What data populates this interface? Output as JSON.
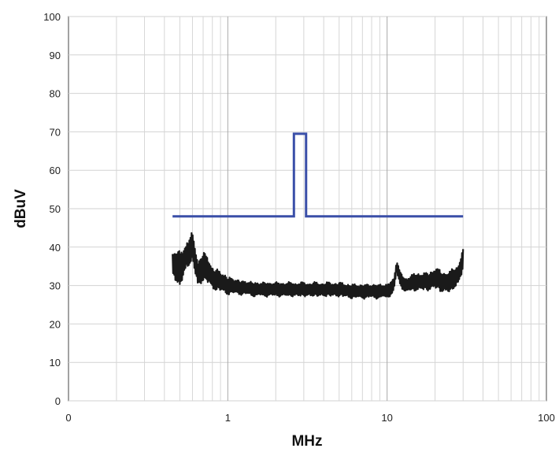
{
  "chart_data": {
    "type": "line",
    "xscale": "log",
    "xlabel": "MHz",
    "ylabel": "dBuV",
    "xlim": [
      0.1,
      100
    ],
    "ylim": [
      0,
      100
    ],
    "x_tick_labels": [
      "0",
      "1",
      "10",
      "100"
    ],
    "y_ticks": [
      0,
      10,
      20,
      30,
      40,
      50,
      60,
      70,
      80,
      90,
      100
    ],
    "grid": true,
    "legend": "none",
    "series": [
      {
        "role": "limit",
        "color": "#3a4fa8",
        "x": [
          0.45,
          2.6,
          2.6,
          3.1,
          3.1,
          30
        ],
        "y": [
          48,
          48,
          69.5,
          69.5,
          48,
          48
        ]
      },
      {
        "role": "measured",
        "color": "#1a1a1a",
        "x": [
          0.45,
          0.5,
          0.55,
          0.6,
          0.65,
          0.7,
          0.75,
          0.8,
          0.9,
          1.0,
          1.2,
          1.5,
          2.0,
          2.5,
          3.0,
          4.0,
          5.0,
          6.0,
          8.0,
          10.0,
          11.0,
          11.5,
          12.0,
          13.0,
          15.0,
          18.0,
          20.0,
          22.0,
          25.0,
          28.0,
          30.0
        ],
        "y": [
          36,
          34,
          38,
          40,
          33,
          35,
          34,
          32,
          31,
          30,
          29.5,
          29,
          29,
          29,
          29,
          29,
          29,
          28.5,
          28.5,
          28.5,
          30,
          35,
          32,
          30,
          31,
          31,
          32,
          31,
          31,
          33,
          37
        ],
        "spread": [
          4,
          5,
          4,
          4,
          4,
          4,
          4,
          3,
          3,
          2.5,
          2,
          2,
          2,
          2,
          2,
          2,
          2,
          2,
          2,
          2,
          2,
          2,
          2,
          2,
          2.5,
          2.5,
          3,
          3,
          3,
          3,
          3
        ]
      }
    ]
  }
}
